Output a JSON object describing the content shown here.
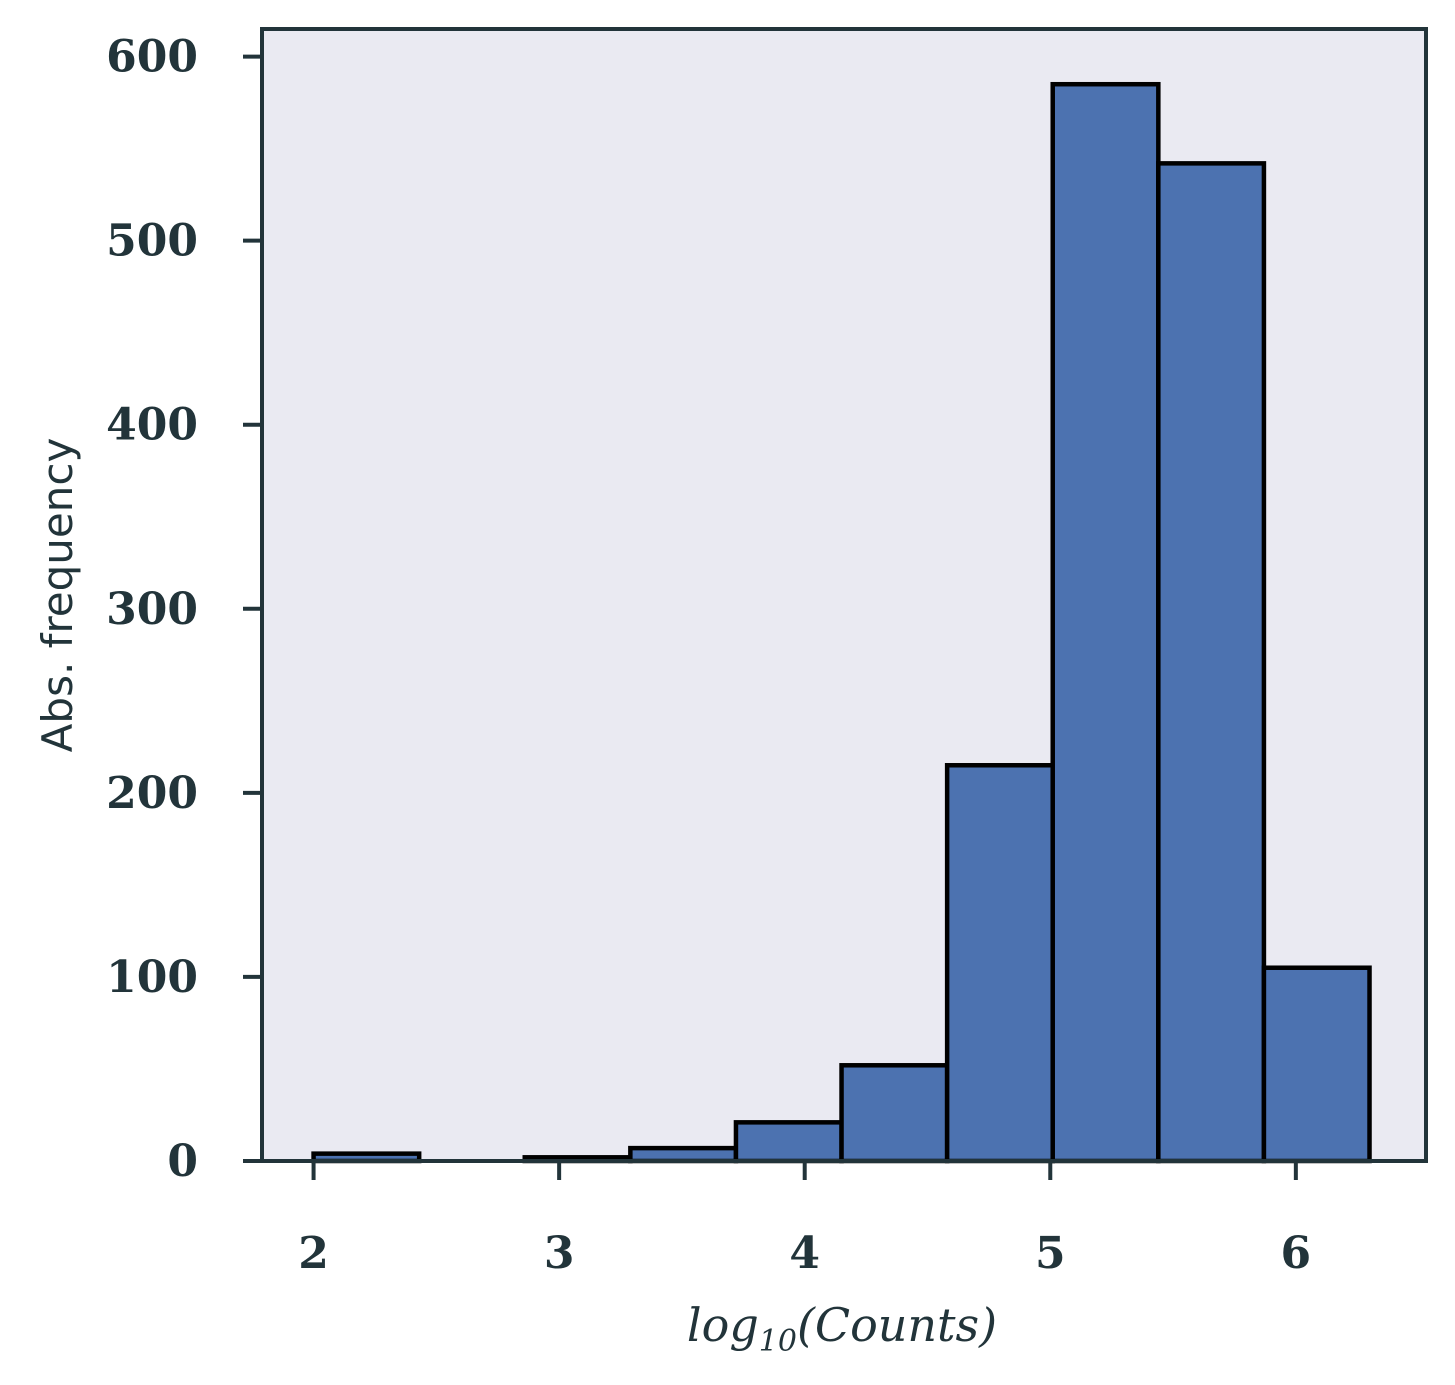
{
  "chart_data": {
    "type": "bar",
    "subtype": "histogram",
    "xlabel_parts": [
      "log",
      "10",
      "(Counts)"
    ],
    "ylabel": "Abs. frequency",
    "xlim": [
      1.79,
      6.53
    ],
    "ylim": [
      0,
      615
    ],
    "xticks": [
      2,
      3,
      4,
      5,
      6
    ],
    "yticks": [
      0,
      100,
      200,
      300,
      400,
      500,
      600
    ],
    "bins": [
      {
        "x0": 2.0,
        "x1": 2.43,
        "count": 4
      },
      {
        "x0": 2.43,
        "x1": 2.86,
        "count": 0
      },
      {
        "x0": 2.86,
        "x1": 3.29,
        "count": 2
      },
      {
        "x0": 3.29,
        "x1": 3.72,
        "count": 7
      },
      {
        "x0": 3.72,
        "x1": 4.15,
        "count": 21
      },
      {
        "x0": 4.15,
        "x1": 4.58,
        "count": 52
      },
      {
        "x0": 4.58,
        "x1": 5.01,
        "count": 215
      },
      {
        "x0": 5.01,
        "x1": 5.44,
        "count": 585
      },
      {
        "x0": 5.44,
        "x1": 5.87,
        "count": 542
      },
      {
        "x0": 5.87,
        "x1": 6.3,
        "count": 105
      }
    ],
    "grid": false,
    "colors": {
      "bar_fill": "#4c72b0",
      "bar_edge": "#000000",
      "plot_background": "#eaeaf2",
      "axis": "#22343a",
      "text": "#22343a"
    }
  }
}
